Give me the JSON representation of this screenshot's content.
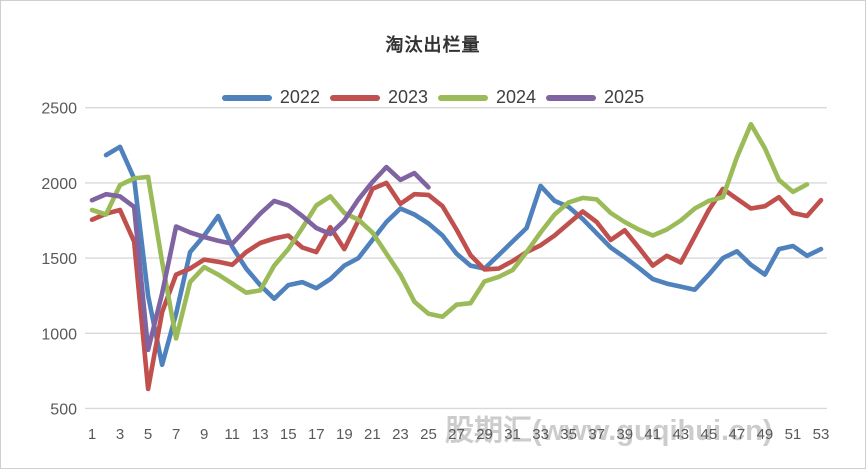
{
  "window": {
    "background": "#ffffff",
    "border_color": "#cfcfcf"
  },
  "watermark": {
    "text": "股期汇(www.guqihui.cn)",
    "color": "#8f8f8f"
  },
  "chart_data": {
    "type": "line",
    "title": "淘汰出栏量",
    "legend_position": "top-center",
    "grid": "horizontal",
    "x_axis": {
      "label": "",
      "range": [
        1,
        53
      ],
      "tick_labels": [
        1,
        3,
        5,
        7,
        9,
        11,
        13,
        15,
        17,
        19,
        21,
        23,
        25,
        27,
        29,
        31,
        33,
        35,
        37,
        39,
        41,
        43,
        45,
        47,
        49,
        51,
        53
      ]
    },
    "y_axis": {
      "label": "",
      "range": [
        500,
        2500
      ],
      "ticks": [
        2500,
        2000,
        1500,
        1000,
        500
      ]
    },
    "series": [
      {
        "name": "2022",
        "color": "#4F81BD",
        "start_week": 2,
        "values": [
          2185,
          2240,
          2030,
          1250,
          790,
          1130,
          1540,
          1650,
          1780,
          1575,
          1430,
          1320,
          1230,
          1320,
          1340,
          1300,
          1360,
          1450,
          1500,
          1620,
          1740,
          1830,
          1790,
          1730,
          1650,
          1530,
          1450,
          1430,
          1520,
          1610,
          1700,
          1980,
          1880,
          1840,
          1760,
          1665,
          1570,
          1505,
          1435,
          1360,
          1330,
          1310,
          1290,
          1390,
          1500,
          1545,
          1455,
          1390,
          1560,
          1580,
          1515,
          1560
        ]
      },
      {
        "name": "2023",
        "color": "#C0504D",
        "start_week": 1,
        "values": [
          1755,
          1795,
          1820,
          1610,
          630,
          1140,
          1390,
          1430,
          1490,
          1475,
          1455,
          1540,
          1600,
          1630,
          1650,
          1570,
          1540,
          1705,
          1560,
          1750,
          1960,
          2000,
          1860,
          1925,
          1920,
          1845,
          1690,
          1520,
          1425,
          1430,
          1480,
          1540,
          1585,
          1650,
          1730,
          1810,
          1740,
          1620,
          1685,
          1570,
          1450,
          1515,
          1470,
          1645,
          1820,
          1960,
          1895,
          1830,
          1845,
          1905,
          1800,
          1780,
          1885
        ]
      },
      {
        "name": "2024",
        "color": "#9BBB59",
        "start_week": 1,
        "values": [
          1820,
          1790,
          1985,
          2030,
          2040,
          1475,
          965,
          1340,
          1440,
          1390,
          1330,
          1270,
          1285,
          1450,
          1560,
          1700,
          1850,
          1910,
          1800,
          1755,
          1670,
          1530,
          1390,
          1210,
          1130,
          1110,
          1190,
          1200,
          1345,
          1375,
          1420,
          1540,
          1670,
          1790,
          1870,
          1900,
          1890,
          1800,
          1740,
          1690,
          1650,
          1690,
          1750,
          1830,
          1880,
          1905,
          2170,
          2390,
          2230,
          2020,
          1940,
          1990
        ]
      },
      {
        "name": "2025",
        "color": "#8064A2",
        "start_week": 1,
        "values": [
          1885,
          1925,
          1910,
          1840,
          890,
          1265,
          1710,
          1670,
          1640,
          1615,
          1595,
          1695,
          1795,
          1880,
          1850,
          1780,
          1700,
          1660,
          1750,
          1890,
          2005,
          2105,
          2020,
          2065,
          1970
        ]
      }
    ]
  }
}
